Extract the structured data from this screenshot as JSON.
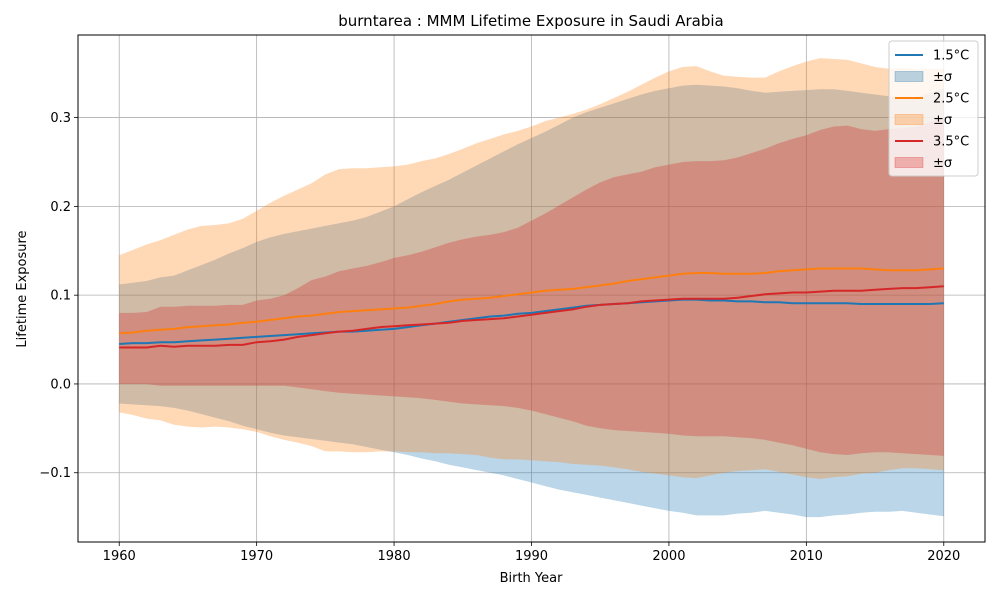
{
  "chart_data": {
    "type": "area",
    "title": "burntarea : MMM Lifetime Exposure in Saudi Arabia",
    "xlabel": "Birth Year",
    "ylabel": "Lifetime Exposure",
    "xlim": [
      1957,
      2023
    ],
    "ylim": [
      -0.178,
      0.393
    ],
    "x_ticks": [
      1960,
      1970,
      1980,
      1990,
      2000,
      2010,
      2020
    ],
    "y_ticks": [
      -0.1,
      0.0,
      0.1,
      0.2,
      0.3
    ],
    "y_tick_labels": [
      "−0.1",
      "0.0",
      "0.1",
      "0.2",
      "0.3"
    ],
    "grid": true,
    "legend_position": "top-right",
    "x": [
      1960,
      1961,
      1962,
      1963,
      1964,
      1965,
      1966,
      1967,
      1968,
      1969,
      1970,
      1971,
      1972,
      1973,
      1974,
      1975,
      1976,
      1977,
      1978,
      1979,
      1980,
      1981,
      1982,
      1983,
      1984,
      1985,
      1986,
      1987,
      1988,
      1989,
      1990,
      1991,
      1992,
      1993,
      1994,
      1995,
      1996,
      1997,
      1998,
      1999,
      2000,
      2001,
      2002,
      2003,
      2004,
      2005,
      2006,
      2007,
      2008,
      2009,
      2010,
      2011,
      2012,
      2013,
      2014,
      2015,
      2016,
      2017,
      2018,
      2019,
      2020
    ],
    "series": [
      {
        "name": "1.5°C",
        "band_label": "±σ",
        "color": "#1f77b4",
        "mean": [
          0.045,
          0.046,
          0.046,
          0.047,
          0.047,
          0.048,
          0.049,
          0.05,
          0.051,
          0.052,
          0.053,
          0.054,
          0.055,
          0.056,
          0.057,
          0.058,
          0.059,
          0.059,
          0.06,
          0.061,
          0.062,
          0.064,
          0.066,
          0.068,
          0.07,
          0.072,
          0.074,
          0.076,
          0.077,
          0.079,
          0.08,
          0.082,
          0.084,
          0.086,
          0.088,
          0.089,
          0.09,
          0.091,
          0.092,
          0.093,
          0.094,
          0.095,
          0.095,
          0.094,
          0.094,
          0.093,
          0.093,
          0.092,
          0.092,
          0.091,
          0.091,
          0.091,
          0.091,
          0.091,
          0.09,
          0.09,
          0.09,
          0.09,
          0.09,
          0.09,
          0.091
        ],
        "upper": [
          0.112,
          0.114,
          0.116,
          0.12,
          0.122,
          0.128,
          0.134,
          0.14,
          0.147,
          0.153,
          0.16,
          0.165,
          0.169,
          0.172,
          0.175,
          0.178,
          0.181,
          0.184,
          0.188,
          0.194,
          0.2,
          0.208,
          0.216,
          0.223,
          0.23,
          0.238,
          0.246,
          0.254,
          0.262,
          0.27,
          0.277,
          0.284,
          0.292,
          0.3,
          0.306,
          0.311,
          0.316,
          0.321,
          0.326,
          0.33,
          0.333,
          0.336,
          0.337,
          0.336,
          0.335,
          0.333,
          0.33,
          0.328,
          0.329,
          0.33,
          0.331,
          0.332,
          0.332,
          0.33,
          0.328,
          0.326,
          0.324,
          0.322,
          0.323,
          0.328,
          0.333
        ],
        "lower": [
          -0.022,
          -0.023,
          -0.024,
          -0.025,
          -0.027,
          -0.03,
          -0.034,
          -0.038,
          -0.042,
          -0.047,
          -0.051,
          -0.055,
          -0.058,
          -0.06,
          -0.062,
          -0.064,
          -0.066,
          -0.068,
          -0.071,
          -0.074,
          -0.077,
          -0.08,
          -0.084,
          -0.087,
          -0.091,
          -0.094,
          -0.097,
          -0.1,
          -0.103,
          -0.107,
          -0.111,
          -0.115,
          -0.119,
          -0.122,
          -0.125,
          -0.128,
          -0.131,
          -0.134,
          -0.137,
          -0.14,
          -0.143,
          -0.145,
          -0.148,
          -0.148,
          -0.148,
          -0.146,
          -0.145,
          -0.143,
          -0.145,
          -0.147,
          -0.15,
          -0.15,
          -0.148,
          -0.147,
          -0.145,
          -0.144,
          -0.144,
          -0.143,
          -0.145,
          -0.147,
          -0.149
        ]
      },
      {
        "name": "2.5°C",
        "band_label": "±σ",
        "color": "#ff7f0e",
        "mean": [
          0.057,
          0.058,
          0.06,
          0.061,
          0.062,
          0.064,
          0.065,
          0.066,
          0.067,
          0.069,
          0.07,
          0.072,
          0.074,
          0.076,
          0.077,
          0.079,
          0.081,
          0.082,
          0.083,
          0.084,
          0.085,
          0.086,
          0.088,
          0.09,
          0.093,
          0.095,
          0.096,
          0.097,
          0.099,
          0.101,
          0.103,
          0.105,
          0.106,
          0.107,
          0.109,
          0.111,
          0.113,
          0.116,
          0.118,
          0.12,
          0.122,
          0.124,
          0.125,
          0.125,
          0.124,
          0.124,
          0.124,
          0.125,
          0.127,
          0.128,
          0.129,
          0.13,
          0.13,
          0.13,
          0.13,
          0.129,
          0.128,
          0.128,
          0.128,
          0.129,
          0.13
        ],
        "upper": [
          0.145,
          0.151,
          0.157,
          0.162,
          0.168,
          0.174,
          0.178,
          0.179,
          0.181,
          0.186,
          0.195,
          0.204,
          0.212,
          0.219,
          0.226,
          0.236,
          0.242,
          0.243,
          0.243,
          0.244,
          0.245,
          0.247,
          0.251,
          0.254,
          0.259,
          0.265,
          0.271,
          0.276,
          0.281,
          0.285,
          0.29,
          0.296,
          0.3,
          0.304,
          0.309,
          0.315,
          0.322,
          0.329,
          0.337,
          0.345,
          0.352,
          0.357,
          0.358,
          0.352,
          0.347,
          0.346,
          0.345,
          0.345,
          0.352,
          0.358,
          0.363,
          0.367,
          0.366,
          0.365,
          0.361,
          0.357,
          0.355,
          0.356,
          0.355,
          0.355,
          0.355
        ],
        "lower": [
          -0.032,
          -0.035,
          -0.039,
          -0.041,
          -0.046,
          -0.048,
          -0.049,
          -0.048,
          -0.049,
          -0.051,
          -0.054,
          -0.059,
          -0.063,
          -0.066,
          -0.07,
          -0.076,
          -0.076,
          -0.077,
          -0.077,
          -0.076,
          -0.076,
          -0.077,
          -0.077,
          -0.078,
          -0.078,
          -0.079,
          -0.08,
          -0.083,
          -0.085,
          -0.085,
          -0.086,
          -0.087,
          -0.088,
          -0.09,
          -0.091,
          -0.092,
          -0.094,
          -0.096,
          -0.099,
          -0.101,
          -0.103,
          -0.105,
          -0.106,
          -0.103,
          -0.1,
          -0.098,
          -0.097,
          -0.096,
          -0.099,
          -0.102,
          -0.105,
          -0.107,
          -0.105,
          -0.104,
          -0.101,
          -0.1,
          -0.097,
          -0.095,
          -0.095,
          -0.096,
          -0.097
        ]
      },
      {
        "name": "3.5°C",
        "band_label": "±σ",
        "color": "#d62728",
        "mean": [
          0.041,
          0.041,
          0.041,
          0.043,
          0.042,
          0.043,
          0.043,
          0.043,
          0.044,
          0.044,
          0.047,
          0.048,
          0.05,
          0.053,
          0.055,
          0.057,
          0.059,
          0.06,
          0.062,
          0.064,
          0.065,
          0.066,
          0.067,
          0.068,
          0.069,
          0.071,
          0.072,
          0.073,
          0.074,
          0.076,
          0.078,
          0.08,
          0.082,
          0.084,
          0.087,
          0.089,
          0.09,
          0.091,
          0.093,
          0.094,
          0.095,
          0.096,
          0.096,
          0.096,
          0.096,
          0.097,
          0.099,
          0.101,
          0.102,
          0.103,
          0.103,
          0.104,
          0.105,
          0.105,
          0.105,
          0.106,
          0.107,
          0.108,
          0.108,
          0.109,
          0.11
        ],
        "upper": [
          0.08,
          0.08,
          0.081,
          0.087,
          0.087,
          0.088,
          0.088,
          0.088,
          0.089,
          0.089,
          0.094,
          0.096,
          0.1,
          0.108,
          0.117,
          0.121,
          0.127,
          0.13,
          0.133,
          0.137,
          0.142,
          0.145,
          0.149,
          0.154,
          0.159,
          0.163,
          0.166,
          0.168,
          0.171,
          0.176,
          0.184,
          0.192,
          0.201,
          0.21,
          0.219,
          0.227,
          0.233,
          0.236,
          0.239,
          0.244,
          0.247,
          0.25,
          0.251,
          0.251,
          0.252,
          0.255,
          0.26,
          0.265,
          0.271,
          0.276,
          0.28,
          0.286,
          0.29,
          0.291,
          0.287,
          0.285,
          0.287,
          0.288,
          0.29,
          0.295,
          0.3
        ],
        "lower": [
          0.0,
          0.0,
          0.0,
          -0.002,
          -0.002,
          -0.002,
          -0.002,
          -0.002,
          -0.002,
          -0.002,
          -0.002,
          -0.002,
          -0.002,
          -0.004,
          -0.006,
          -0.008,
          -0.01,
          -0.011,
          -0.012,
          -0.013,
          -0.014,
          -0.015,
          -0.016,
          -0.018,
          -0.02,
          -0.022,
          -0.023,
          -0.024,
          -0.025,
          -0.027,
          -0.03,
          -0.034,
          -0.038,
          -0.042,
          -0.047,
          -0.05,
          -0.052,
          -0.053,
          -0.054,
          -0.055,
          -0.056,
          -0.058,
          -0.059,
          -0.059,
          -0.059,
          -0.06,
          -0.061,
          -0.063,
          -0.066,
          -0.069,
          -0.073,
          -0.077,
          -0.079,
          -0.08,
          -0.078,
          -0.077,
          -0.077,
          -0.078,
          -0.079,
          -0.08,
          -0.081
        ]
      }
    ]
  }
}
